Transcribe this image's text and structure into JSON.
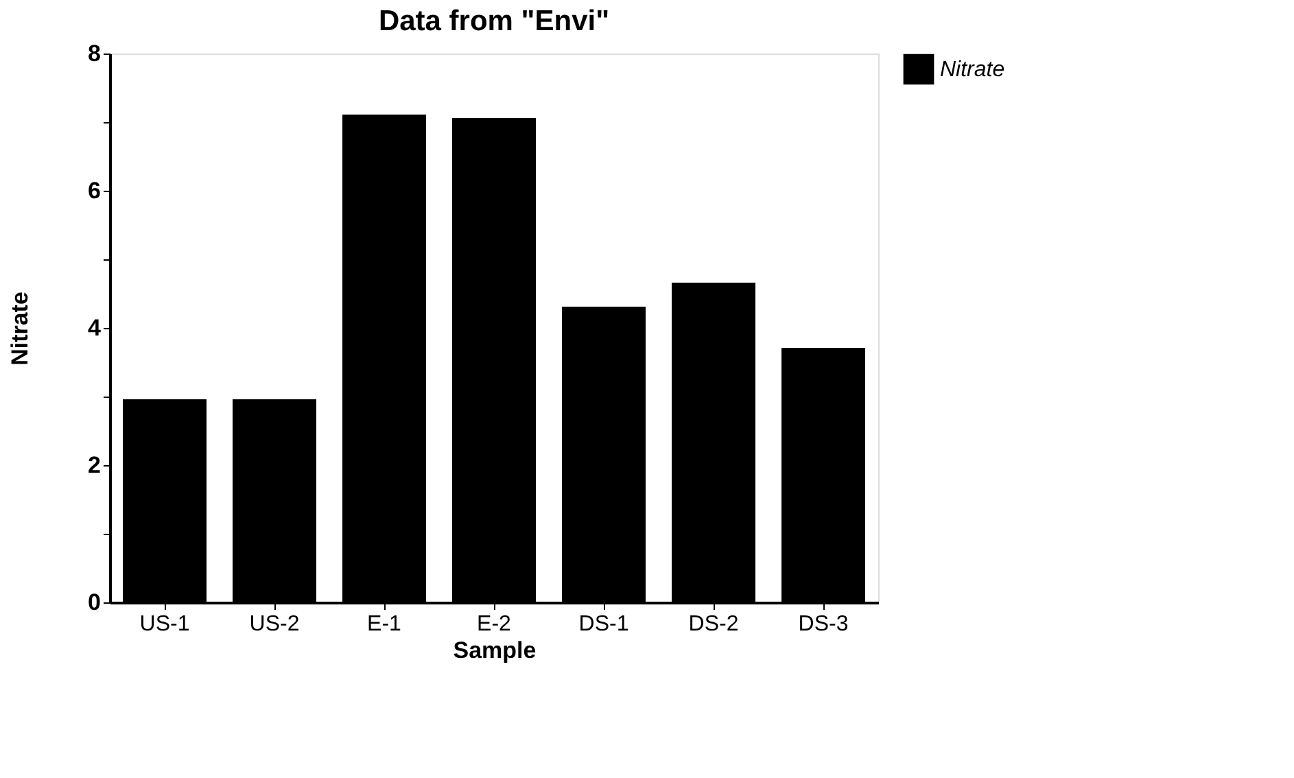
{
  "chart_data": {
    "type": "bar",
    "title": "Data from \"Envi\"",
    "xlabel": "Sample",
    "ylabel": "Nitrate",
    "categories": [
      "US-1",
      "US-2",
      "E-1",
      "E-2",
      "DS-1",
      "DS-2",
      "DS-3"
    ],
    "series": [
      {
        "name": "Nitrate",
        "color": "#000000",
        "values": [
          2.95,
          2.95,
          7.1,
          7.05,
          4.3,
          4.65,
          3.7
        ]
      }
    ],
    "ylim": [
      0,
      8
    ],
    "yticks": [
      0,
      {
        "value": 1,
        "label": null
      },
      2,
      {
        "value": 3,
        "label": null
      },
      4,
      {
        "value": 5,
        "label": null
      },
      6,
      {
        "value": 7,
        "label": null
      },
      8
    ],
    "grid": false,
    "legend": "right"
  }
}
